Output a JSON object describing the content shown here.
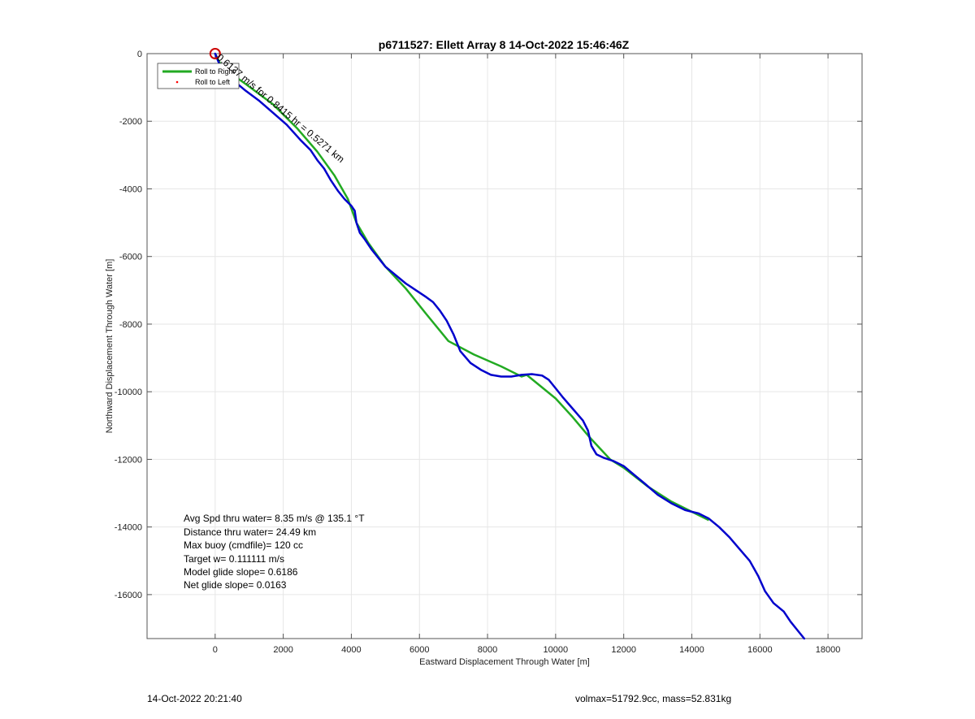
{
  "chart_data": {
    "type": "line",
    "title": "p6711527: Ellett Array 8 14-Oct-2022 15:46:46Z",
    "xlabel": "Eastward Displacement Through Water [m]",
    "ylabel": "Northward Displacement Through Water [m]",
    "xlim": [
      -2000,
      19000
    ],
    "ylim": [
      -17300,
      0
    ],
    "xticks": [
      0,
      2000,
      4000,
      6000,
      8000,
      10000,
      12000,
      14000,
      16000,
      18000
    ],
    "yticks": [
      0,
      -2000,
      -4000,
      -6000,
      -8000,
      -10000,
      -12000,
      -14000,
      -16000
    ],
    "grid": true,
    "legend": {
      "placement": "top-left",
      "entries": [
        "Roll to Right",
        "Roll to Left"
      ]
    },
    "colors": {
      "model": "#22aa22",
      "track": "#0000cc",
      "start_marker": "#cc0000",
      "left_roll": "#ff0000"
    },
    "series": [
      {
        "x": [
          0,
          200,
          900,
          1700,
          2400,
          3000,
          3500,
          3900,
          4150,
          4500,
          5000,
          5600,
          6200,
          6850,
          7600,
          8400,
          9000,
          9150,
          10000,
          10500,
          11000,
          11600,
          12000,
          12700,
          13400,
          14100,
          14500
        ],
        "y": [
          0,
          -400,
          -900,
          -1500,
          -2200,
          -2900,
          -3600,
          -4300,
          -5000,
          -5600,
          -6300,
          -6950,
          -7700,
          -8500,
          -8900,
          -9250,
          -9550,
          -9500,
          -10200,
          -10750,
          -11350,
          -12000,
          -12250,
          -12800,
          -13250,
          -13600,
          -13800
        ]
      },
      {
        "x": [
          0,
          100,
          200,
          400,
          600,
          900,
          1300,
          1700,
          2100,
          2500,
          2800,
          3000,
          3200,
          3400,
          3600,
          3800,
          4000,
          4100,
          4150,
          4250,
          4400,
          4600,
          4800,
          5000,
          5300,
          5600,
          5900,
          6200,
          6400,
          6600,
          6800,
          7000,
          7200,
          7500,
          7800,
          8100,
          8400,
          8700,
          9000,
          9300,
          9600,
          9800,
          10000,
          10200,
          10500,
          10800,
          10950,
          11050,
          11200,
          11400,
          11700,
          12000,
          12300,
          12600,
          13000,
          13400,
          13800,
          14200,
          14500,
          14800,
          15100,
          15400,
          15700,
          15950,
          16150,
          16400,
          16700,
          16900,
          17100,
          17300
        ],
        "y": [
          0,
          -250,
          -450,
          -650,
          -850,
          -1100,
          -1400,
          -1750,
          -2100,
          -2550,
          -2850,
          -3150,
          -3400,
          -3750,
          -4050,
          -4300,
          -4500,
          -4650,
          -5000,
          -5300,
          -5500,
          -5800,
          -6050,
          -6300,
          -6550,
          -6800,
          -7000,
          -7200,
          -7350,
          -7600,
          -7900,
          -8300,
          -8800,
          -9150,
          -9350,
          -9500,
          -9550,
          -9550,
          -9500,
          -9480,
          -9520,
          -9650,
          -9900,
          -10150,
          -10500,
          -10850,
          -11150,
          -11600,
          -11850,
          -11950,
          -12050,
          -12200,
          -12450,
          -12700,
          -13050,
          -13300,
          -13500,
          -13600,
          -13750,
          -14000,
          -14300,
          -14650,
          -15000,
          -15450,
          -15900,
          -16250,
          -16500,
          -16800,
          -17050,
          -17300
        ]
      }
    ],
    "annotations": {
      "along_track": "0.6137 m/s for 0.8415 hr = 0.5271 km",
      "stats": [
        "Avg Spd thru water=  8.35 m/s @ 135.1 °T",
        "Distance thru water= 24.49 km",
        "Max buoy (cmdfile)= 120 cc",
        "Target w= 0.111111 m/s",
        "Model glide slope= 0.6186",
        "Net glide slope= 0.0163"
      ]
    }
  },
  "footer": {
    "timestamp": "14-Oct-2022 20:21:40",
    "mass_info": "volmax=51792.9cc, mass=52.831kg"
  }
}
